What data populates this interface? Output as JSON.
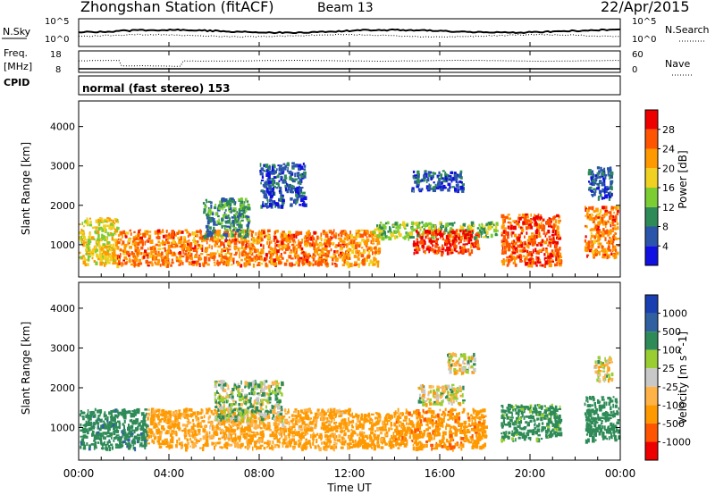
{
  "header": {
    "station": "Zhongshan Station (fitACF)",
    "beam": "Beam 13",
    "date": "22/Apr/2015"
  },
  "noise_panel": {
    "left_label": "N.Sky",
    "left_ticks": [
      "10^5",
      "10^0"
    ],
    "right_label": "N.Search",
    "right_ticks": [
      "10^5",
      "10^0"
    ]
  },
  "freq_panel": {
    "left_label_1": "Freq.",
    "left_label_2": "[MHz]",
    "left_ticks": [
      "18",
      "8"
    ],
    "right_label": "Nave",
    "right_ticks": [
      "60",
      "0"
    ]
  },
  "cpid": {
    "label": "CPID",
    "value": "normal (fast stereo) 153"
  },
  "colors": {
    "power_scale": [
      "#1010e0",
      "#2a55aa",
      "#2e8b57",
      "#7ccd32",
      "#f0d020",
      "#ff9900",
      "#ff5500",
      "#ee0000"
    ],
    "velocity_scale": [
      "#ee0000",
      "#ff5500",
      "#ff9900",
      "#ffb347",
      "#c8c8c8",
      "#9acd32",
      "#2e8b57",
      "#3060a0",
      "#1a3fb0"
    ]
  },
  "chart_data": [
    {
      "type": "heatmap",
      "title": "",
      "xlabel": "",
      "ylabel": "Slant Range [km]",
      "y_ticks": [
        "1000",
        "2000",
        "3000",
        "4000"
      ],
      "ylim": [
        180,
        4650
      ],
      "x_hours": [
        0,
        24
      ],
      "colorbar": {
        "label": "Power [dB]",
        "ticks": [
          "4",
          "8",
          "12",
          "16",
          "20",
          "24",
          "28"
        ],
        "range": [
          0,
          32
        ]
      },
      "regions": [
        {
          "t": [
            0.0,
            1.7
          ],
          "r": [
            500,
            1700
          ],
          "power_db": 18
        },
        {
          "t": [
            1.7,
            12.0
          ],
          "r": [
            500,
            1400
          ],
          "power_db": 24
        },
        {
          "t": [
            5.5,
            7.5
          ],
          "r": [
            1200,
            2200
          ],
          "power_db": 10
        },
        {
          "t": [
            8.0,
            10.0
          ],
          "r": [
            2000,
            3100
          ],
          "power_db": 6
        },
        {
          "t": [
            12.0,
            13.3
          ],
          "r": [
            500,
            1400
          ],
          "power_db": 22
        },
        {
          "t": [
            13.0,
            18.5
          ],
          "r": [
            1200,
            1600
          ],
          "power_db": 14
        },
        {
          "t": [
            14.8,
            17.7
          ],
          "r": [
            800,
            1400
          ],
          "power_db": 28
        },
        {
          "t": [
            14.7,
            17.0
          ],
          "r": [
            2400,
            2900
          ],
          "power_db": 6
        },
        {
          "t": [
            18.7,
            21.3
          ],
          "r": [
            500,
            1800
          ],
          "power_db": 26
        },
        {
          "t": [
            22.4,
            23.9
          ],
          "r": [
            700,
            2000
          ],
          "power_db": 24
        },
        {
          "t": [
            22.5,
            23.6
          ],
          "r": [
            2200,
            3000
          ],
          "power_db": 6
        }
      ]
    },
    {
      "type": "heatmap",
      "title": "",
      "xlabel": "Time UT",
      "ylabel": "Slant Range [km]",
      "x_ticks": [
        "00:00",
        "04:00",
        "08:00",
        "12:00",
        "16:00",
        "20:00",
        "00:00"
      ],
      "y_ticks": [
        "1000",
        "2000",
        "3000",
        "4000"
      ],
      "ylim": [
        180,
        4650
      ],
      "x_hours": [
        0,
        24
      ],
      "colorbar": {
        "label": "Velocity [m s^-1]",
        "ticks": [
          "1000",
          "500",
          "100",
          "25",
          "-25",
          "-100",
          "-500",
          "-1000"
        ]
      },
      "regions": [
        {
          "t": [
            0.0,
            3.0
          ],
          "r": [
            500,
            1500
          ],
          "velocity": 400
        },
        {
          "t": [
            3.0,
            12.0
          ],
          "r": [
            500,
            1500
          ],
          "velocity": -150
        },
        {
          "t": [
            6.0,
            9.0
          ],
          "r": [
            1200,
            2200
          ],
          "velocity": 60
        },
        {
          "t": [
            12.0,
            14.0
          ],
          "r": [
            500,
            1400
          ],
          "velocity": -200
        },
        {
          "t": [
            14.0,
            18.0
          ],
          "r": [
            500,
            1500
          ],
          "velocity": -400
        },
        {
          "t": [
            15.0,
            17.0
          ],
          "r": [
            1600,
            2100
          ],
          "velocity": 0
        },
        {
          "t": [
            16.3,
            17.5
          ],
          "r": [
            2400,
            2900
          ],
          "velocity": 0
        },
        {
          "t": [
            18.7,
            21.3
          ],
          "r": [
            700,
            1600
          ],
          "velocity": 200
        },
        {
          "t": [
            22.4,
            23.9
          ],
          "r": [
            700,
            1800
          ],
          "velocity": 300
        },
        {
          "t": [
            22.8,
            23.6
          ],
          "r": [
            2200,
            2800
          ],
          "velocity": 0
        }
      ]
    }
  ]
}
